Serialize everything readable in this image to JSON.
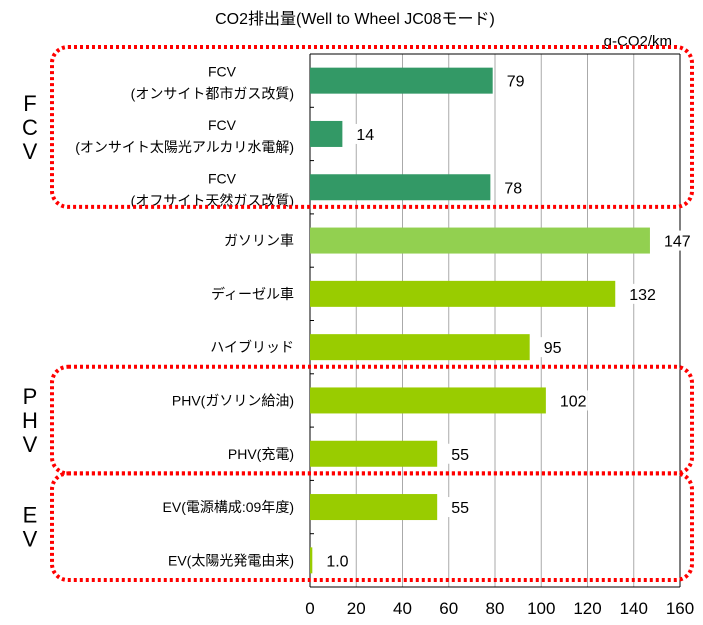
{
  "chart_data": {
    "type": "bar",
    "orientation": "horizontal",
    "title": "CO2排出量(Well to Wheel JC08モード)",
    "unit_label": "g-CO2/km",
    "xlim": [
      0,
      160
    ],
    "xticks": [
      0,
      20,
      40,
      60,
      80,
      100,
      120,
      140,
      160
    ],
    "grid": true,
    "categories": [
      {
        "line1": "FCV",
        "line2": "(オンサイト都市ガス改質)"
      },
      {
        "line1": "FCV",
        "line2": "(オンサイト太陽光アルカリ水電解)"
      },
      {
        "line1": "FCV",
        "line2": "(オフサイト天然ガス改質)"
      },
      {
        "line1": "ガソリン車",
        "line2": ""
      },
      {
        "line1": "ディーゼル車",
        "line2": ""
      },
      {
        "line1": "ハイブリッド",
        "line2": ""
      },
      {
        "line1": "PHV(ガソリン給油)",
        "line2": ""
      },
      {
        "line1": "PHV(充電)",
        "line2": ""
      },
      {
        "line1": "EV(電源構成:09年度)",
        "line2": ""
      },
      {
        "line1": "EV(太陽光発電由来)",
        "line2": ""
      }
    ],
    "values": [
      79,
      14,
      78,
      147,
      132,
      95,
      102,
      55,
      55,
      1.0
    ],
    "value_labels": [
      "79",
      "14",
      "78",
      "147",
      "132",
      "95",
      "102",
      "55",
      "55",
      "1.0"
    ],
    "bar_colors": [
      "#339966",
      "#339966",
      "#339966",
      "#92d050",
      "#99cc00",
      "#99cc00",
      "#99cc00",
      "#99cc00",
      "#99cc00",
      "#99cc00"
    ],
    "groups": [
      {
        "label": "FCV",
        "first": 0,
        "last": 2
      },
      {
        "label": "PHV",
        "first": 6,
        "last": 7
      },
      {
        "label": "EV",
        "first": 8,
        "last": 9
      }
    ],
    "group_box_color": "#ff0000"
  }
}
